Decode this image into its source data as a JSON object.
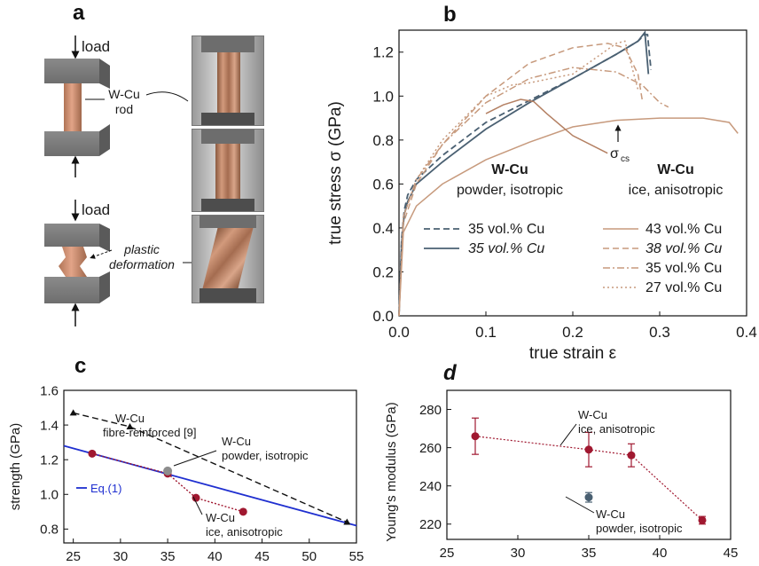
{
  "panel_labels": {
    "a": "a",
    "b": "b",
    "c": "c",
    "d": "d"
  },
  "panel_a": {
    "load_top": "load",
    "rod_label_1": "W-Cu",
    "rod_label_2": "rod",
    "load_bottom": "load",
    "deform_label_1": "plastic",
    "deform_label_2": "deformation"
  },
  "colors": {
    "powder": "#4a6072",
    "ice": "#c79a7d",
    "ice_dark": "#b48063",
    "eq1": "#1f2fd0",
    "fibre": "#111111",
    "marker": "#a01830",
    "marker_gray": "#8d8d8d"
  },
  "chart_data": [
    {
      "id": "b",
      "type": "line",
      "xlabel": "true strain ε",
      "ylabel": "true stress σ (GPa)",
      "xlim": [
        0.0,
        0.4
      ],
      "ylim": [
        0.0,
        1.3
      ],
      "xticks": [
        "0.0",
        "0.1",
        "0.2",
        "0.3",
        "0.4"
      ],
      "yticks": [
        "0.0",
        "0.2",
        "0.4",
        "0.6",
        "0.8",
        "1.0",
        "1.2"
      ],
      "annotations": {
        "powder_title": "W-Cu",
        "powder_sub": "powder, isotropic",
        "ice_title": "W-Cu",
        "ice_sub": "ice, anisotropic",
        "sigma": "σ",
        "sigma_sub": "cs"
      },
      "series": [
        {
          "name": "35 vol.% Cu",
          "group": "powder",
          "style": "dashed",
          "x": [
            0,
            0.003,
            0.006,
            0.01,
            0.02,
            0.05,
            0.1,
            0.15,
            0.2,
            0.25,
            0.275,
            0.283,
            0.286,
            0.288,
            0.29
          ],
          "y": [
            0,
            0.35,
            0.48,
            0.55,
            0.62,
            0.73,
            0.88,
            0.98,
            1.08,
            1.19,
            1.25,
            1.28,
            1.28,
            1.2,
            1.12
          ]
        },
        {
          "name": "35 vol.% Cu",
          "group": "powder",
          "style": "solid",
          "x": [
            0,
            0.003,
            0.006,
            0.01,
            0.02,
            0.05,
            0.1,
            0.15,
            0.2,
            0.25,
            0.275,
            0.283,
            0.287
          ],
          "y": [
            0,
            0.33,
            0.46,
            0.52,
            0.6,
            0.7,
            0.85,
            0.97,
            1.08,
            1.19,
            1.25,
            1.29,
            1.1
          ]
        },
        {
          "name": "43 vol.% Cu",
          "group": "ice",
          "style": "solid",
          "x": [
            0,
            0.005,
            0.02,
            0.05,
            0.1,
            0.15,
            0.2,
            0.25,
            0.3,
            0.35,
            0.38,
            0.39
          ],
          "y": [
            0,
            0.38,
            0.5,
            0.6,
            0.71,
            0.79,
            0.86,
            0.89,
            0.9,
            0.9,
            0.88,
            0.83
          ]
        },
        {
          "name": "38 vol.% Cu",
          "group": "ice",
          "style": "dashed",
          "x": [
            0,
            0.005,
            0.02,
            0.05,
            0.1,
            0.15,
            0.2,
            0.24,
            0.26,
            0.275,
            0.28
          ],
          "y": [
            0,
            0.42,
            0.6,
            0.78,
            1.0,
            1.15,
            1.22,
            1.24,
            1.22,
            1.1,
            0.98
          ]
        },
        {
          "name": "35 vol.% Cu",
          "group": "ice",
          "style": "dashdot",
          "x": [
            0,
            0.005,
            0.02,
            0.05,
            0.1,
            0.15,
            0.2,
            0.25,
            0.28,
            0.3,
            0.31
          ],
          "y": [
            0,
            0.45,
            0.62,
            0.78,
            0.97,
            1.08,
            1.13,
            1.11,
            1.05,
            0.97,
            0.95
          ]
        },
        {
          "name": "27 vol.% Cu",
          "group": "ice",
          "style": "dotted",
          "x": [
            0,
            0.005,
            0.02,
            0.05,
            0.1,
            0.13,
            0.15,
            0.2,
            0.25,
            0.26,
            0.275
          ],
          "y": [
            0,
            0.45,
            0.62,
            0.8,
            1.0,
            1.05,
            1.06,
            1.1,
            1.24,
            1.25,
            1.03
          ]
        },
        {
          "name": "",
          "group": "ice",
          "style": "solid",
          "x": [
            0.1,
            0.12,
            0.14,
            0.155,
            0.17,
            0.2,
            0.24
          ],
          "y": [
            0.92,
            0.96,
            0.985,
            0.975,
            0.92,
            0.82,
            0.74
          ]
        }
      ],
      "legend_left": [
        {
          "label": "35 vol.% Cu",
          "style": "dashed",
          "italic": false
        },
        {
          "label": "35 vol.% Cu",
          "style": "solid",
          "italic": true
        }
      ],
      "legend_right": [
        {
          "label": "43 vol.% Cu",
          "style": "solid",
          "italic": false
        },
        {
          "label": "38 vol.% Cu",
          "style": "dashed",
          "italic": true
        },
        {
          "label": "35 vol.% Cu",
          "style": "dashdot",
          "italic": false
        },
        {
          "label": "27 vol.% Cu",
          "style": "dotted",
          "italic": false
        }
      ]
    },
    {
      "id": "c",
      "type": "line",
      "ylabel": "strength (GPa)",
      "xlim": [
        24,
        55
      ],
      "ylim": [
        0.72,
        1.6
      ],
      "xticks": [
        "25",
        "30",
        "35",
        "40",
        "45",
        "50",
        "55"
      ],
      "yticks": [
        "0.8",
        "1.0",
        "1.2",
        "1.4",
        "1.6"
      ],
      "annotations": {
        "fibre_1": "W-Cu",
        "fibre_2": "fibre-reinforced [9]",
        "powder_1": "W-Cu",
        "powder_2": "powder, isotropic",
        "eq": "Eq.(1)",
        "ice_1": "W-Cu",
        "ice_2": "ice, anisotropic"
      },
      "series": [
        {
          "name": "",
          "kind": "eq1",
          "x": [
            24,
            55
          ],
          "y": [
            1.28,
            0.82
          ]
        },
        {
          "name": "",
          "kind": "fibre",
          "x": [
            25,
            31,
            54
          ],
          "y": [
            1.47,
            1.39,
            0.84
          ]
        },
        {
          "name": "",
          "kind": "ice",
          "x": [
            27,
            35,
            38,
            43
          ],
          "y": [
            1.235,
            1.12,
            0.98,
            0.9
          ]
        }
      ],
      "powder_point": {
        "x": 35,
        "y": 1.135
      }
    },
    {
      "id": "d",
      "type": "scatter",
      "ylabel": "Young's modulus (GPa)",
      "xlim": [
        25,
        45
      ],
      "ylim": [
        212,
        290
      ],
      "xticks": [
        "25",
        "30",
        "35",
        "40",
        "45"
      ],
      "yticks": [
        "220",
        "240",
        "260",
        "280"
      ],
      "annotations": {
        "ice_1": "W-Cu",
        "ice_2": "ice, anisotropic",
        "powder_1": "W-Cu",
        "powder_2": "powder, isotropic"
      },
      "series": [
        {
          "name": "",
          "kind": "ice",
          "x": [
            27,
            35,
            38,
            43
          ],
          "y": [
            266,
            259,
            256,
            222
          ],
          "err": [
            9.5,
            9,
            6,
            2
          ]
        },
        {
          "name": "",
          "kind": "powder",
          "x": [
            35
          ],
          "y": [
            234
          ],
          "err": [
            2.5
          ]
        }
      ]
    }
  ]
}
